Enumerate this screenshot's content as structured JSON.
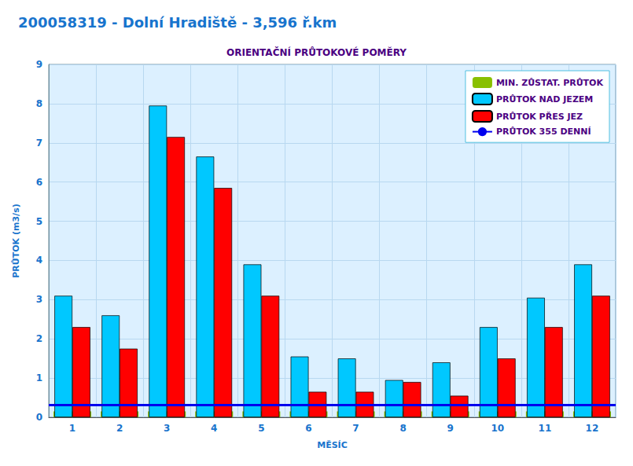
{
  "chart_data": {
    "type": "bar",
    "title": "200058319 - Dolní Hradiště - 3,596 ř.km",
    "subtitle": "ORIENTAČNÍ PRŮTOKOVÉ POMĚRY",
    "xlabel": "MĚSÍC",
    "ylabel": "PRŮTOK (m3/s)",
    "categories": [
      "1",
      "2",
      "3",
      "4",
      "5",
      "6",
      "7",
      "8",
      "9",
      "10",
      "11",
      "12"
    ],
    "series": [
      {
        "name": "MIN. ZŮSTAT. PRŮTOK",
        "type": "bar",
        "color": "#88C000",
        "values": [
          0.15,
          0.15,
          0.15,
          0.15,
          0.15,
          0.15,
          0.15,
          0.15,
          0.15,
          0.15,
          0.15,
          0.15
        ]
      },
      {
        "name": "PRŮTOK NAD JEZEM",
        "type": "bar",
        "color": "#00C8FF",
        "values": [
          3.1,
          2.6,
          7.95,
          6.65,
          3.9,
          1.55,
          1.5,
          0.95,
          1.4,
          2.3,
          3.05,
          3.9
        ]
      },
      {
        "name": "PRŮTOK PŘES JEZ",
        "type": "bar",
        "color": "#FF0000",
        "values": [
          2.3,
          1.75,
          7.15,
          5.85,
          3.1,
          0.65,
          0.65,
          0.9,
          0.55,
          1.5,
          2.3,
          3.1
        ]
      },
      {
        "name": "PRŮTOK 355 DENNÍ",
        "type": "hline",
        "color": "#0000EE",
        "value": 0.32
      }
    ],
    "ylim": [
      0,
      9
    ],
    "yticks": [
      0,
      1,
      2,
      3,
      4,
      5,
      6,
      7,
      8,
      9
    ],
    "grid": true,
    "legend": "upper right"
  }
}
